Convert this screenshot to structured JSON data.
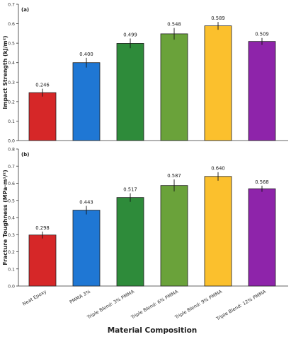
{
  "xlabel": "Material Composition",
  "chart_data": [
    {
      "type": "bar",
      "panel_label": "(a)",
      "title": "",
      "ylabel": "Impact Strength (kJ/m²)",
      "xlabel": "",
      "ylim": [
        0,
        0.7
      ],
      "yticks": [
        "0.0",
        "0.1",
        "0.2",
        "0.3",
        "0.4",
        "0.5",
        "0.6",
        "0.7"
      ],
      "categories": [
        "Neat Epoxy",
        "PMMA 3%",
        "Triple Blend: 3% PMMA",
        "Triple Blend: 6% PMMA",
        "Triple Blend: 9% PMMA",
        "Triple Blend: 12% PMMA"
      ],
      "values": [
        0.246,
        0.4,
        0.499,
        0.548,
        0.589,
        0.509
      ],
      "value_labels": [
        "0.246",
        "0.400",
        "0.499",
        "0.548",
        "0.589",
        "0.509"
      ],
      "errors": [
        0.02,
        0.025,
        0.025,
        0.03,
        0.02,
        0.018
      ],
      "colors": [
        "#d62728",
        "#1f77d4",
        "#2e8b3a",
        "#6aa23a",
        "#fbc02d",
        "#8e24aa"
      ],
      "grid": false,
      "legend": "none"
    },
    {
      "type": "bar",
      "panel_label": "(b)",
      "title": "",
      "ylabel": "Fracture Toughness (MPa·m¹/²)",
      "xlabel": "Material Composition",
      "ylim": [
        0,
        0.8
      ],
      "yticks": [
        "0.0",
        "0.1",
        "0.2",
        "0.3",
        "0.4",
        "0.5",
        "0.6",
        "0.7",
        "0.8"
      ],
      "categories": [
        "Neat Epoxy",
        "PMMA 3%",
        "Triple Blend: 3% PMMA",
        "Triple Blend: 6% PMMA",
        "Triple Blend: 9% PMMA",
        "Triple Blend: 12% PMMA"
      ],
      "values": [
        0.298,
        0.443,
        0.517,
        0.587,
        0.64,
        0.568
      ],
      "value_labels": [
        "0.298",
        "0.443",
        "0.517",
        "0.587",
        "0.640",
        "0.568"
      ],
      "errors": [
        0.02,
        0.025,
        0.025,
        0.035,
        0.025,
        0.018
      ],
      "colors": [
        "#d62728",
        "#1f77d4",
        "#2e8b3a",
        "#6aa23a",
        "#fbc02d",
        "#8e24aa"
      ],
      "grid": false,
      "legend": "none"
    }
  ]
}
